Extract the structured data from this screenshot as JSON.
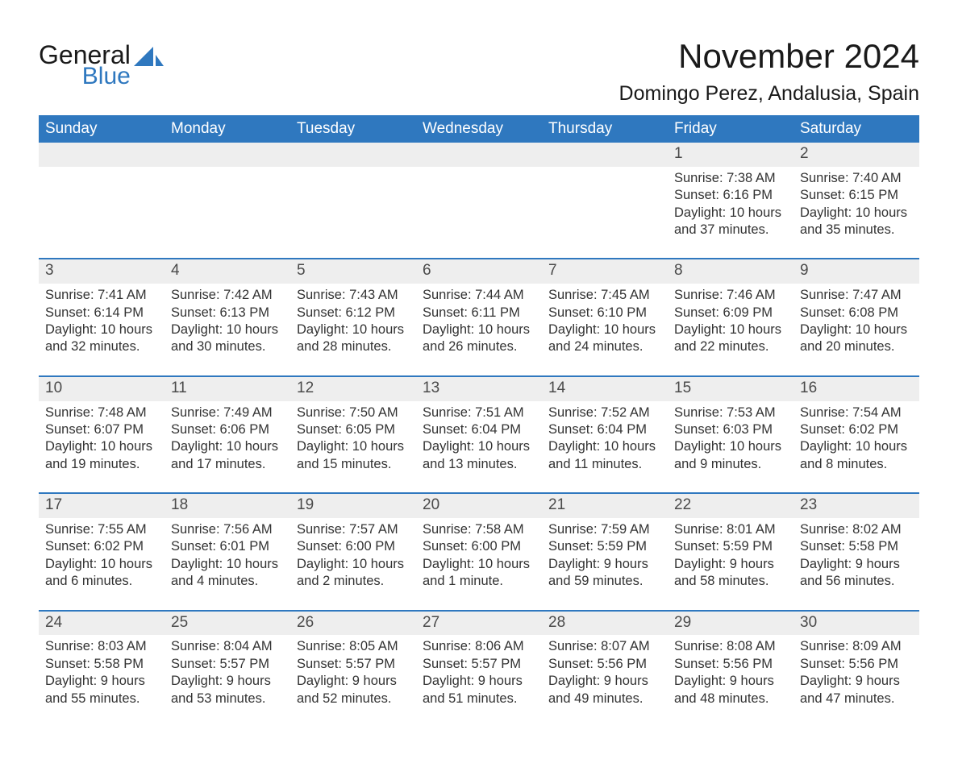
{
  "brand": {
    "word1": "General",
    "word2": "Blue",
    "icon_color": "#2f78bf"
  },
  "title": "November 2024",
  "location": "Domingo Perez, Andalusia, Spain",
  "colors": {
    "header_bg": "#2f78bf",
    "header_text": "#ffffff",
    "row_divider": "#2f78bf",
    "daynum_bg": "#eeeeee",
    "daynum_text": "#4a4a4a",
    "body_text": "#333333",
    "page_bg": "#ffffff"
  },
  "typography": {
    "title_fontsize": 42,
    "location_fontsize": 25,
    "weekday_fontsize": 19,
    "daynum_fontsize": 19,
    "cell_fontsize": 16.5,
    "font_family": "Arial"
  },
  "weekday_labels": [
    "Sunday",
    "Monday",
    "Tuesday",
    "Wednesday",
    "Thursday",
    "Friday",
    "Saturday"
  ],
  "weeks": [
    [
      null,
      null,
      null,
      null,
      null,
      {
        "n": "1",
        "sunrise": "Sunrise: 7:38 AM",
        "sunset": "Sunset: 6:16 PM",
        "daylight": "Daylight: 10 hours and 37 minutes."
      },
      {
        "n": "2",
        "sunrise": "Sunrise: 7:40 AM",
        "sunset": "Sunset: 6:15 PM",
        "daylight": "Daylight: 10 hours and 35 minutes."
      }
    ],
    [
      {
        "n": "3",
        "sunrise": "Sunrise: 7:41 AM",
        "sunset": "Sunset: 6:14 PM",
        "daylight": "Daylight: 10 hours and 32 minutes."
      },
      {
        "n": "4",
        "sunrise": "Sunrise: 7:42 AM",
        "sunset": "Sunset: 6:13 PM",
        "daylight": "Daylight: 10 hours and 30 minutes."
      },
      {
        "n": "5",
        "sunrise": "Sunrise: 7:43 AM",
        "sunset": "Sunset: 6:12 PM",
        "daylight": "Daylight: 10 hours and 28 minutes."
      },
      {
        "n": "6",
        "sunrise": "Sunrise: 7:44 AM",
        "sunset": "Sunset: 6:11 PM",
        "daylight": "Daylight: 10 hours and 26 minutes."
      },
      {
        "n": "7",
        "sunrise": "Sunrise: 7:45 AM",
        "sunset": "Sunset: 6:10 PM",
        "daylight": "Daylight: 10 hours and 24 minutes."
      },
      {
        "n": "8",
        "sunrise": "Sunrise: 7:46 AM",
        "sunset": "Sunset: 6:09 PM",
        "daylight": "Daylight: 10 hours and 22 minutes."
      },
      {
        "n": "9",
        "sunrise": "Sunrise: 7:47 AM",
        "sunset": "Sunset: 6:08 PM",
        "daylight": "Daylight: 10 hours and 20 minutes."
      }
    ],
    [
      {
        "n": "10",
        "sunrise": "Sunrise: 7:48 AM",
        "sunset": "Sunset: 6:07 PM",
        "daylight": "Daylight: 10 hours and 19 minutes."
      },
      {
        "n": "11",
        "sunrise": "Sunrise: 7:49 AM",
        "sunset": "Sunset: 6:06 PM",
        "daylight": "Daylight: 10 hours and 17 minutes."
      },
      {
        "n": "12",
        "sunrise": "Sunrise: 7:50 AM",
        "sunset": "Sunset: 6:05 PM",
        "daylight": "Daylight: 10 hours and 15 minutes."
      },
      {
        "n": "13",
        "sunrise": "Sunrise: 7:51 AM",
        "sunset": "Sunset: 6:04 PM",
        "daylight": "Daylight: 10 hours and 13 minutes."
      },
      {
        "n": "14",
        "sunrise": "Sunrise: 7:52 AM",
        "sunset": "Sunset: 6:04 PM",
        "daylight": "Daylight: 10 hours and 11 minutes."
      },
      {
        "n": "15",
        "sunrise": "Sunrise: 7:53 AM",
        "sunset": "Sunset: 6:03 PM",
        "daylight": "Daylight: 10 hours and 9 minutes."
      },
      {
        "n": "16",
        "sunrise": "Sunrise: 7:54 AM",
        "sunset": "Sunset: 6:02 PM",
        "daylight": "Daylight: 10 hours and 8 minutes."
      }
    ],
    [
      {
        "n": "17",
        "sunrise": "Sunrise: 7:55 AM",
        "sunset": "Sunset: 6:02 PM",
        "daylight": "Daylight: 10 hours and 6 minutes."
      },
      {
        "n": "18",
        "sunrise": "Sunrise: 7:56 AM",
        "sunset": "Sunset: 6:01 PM",
        "daylight": "Daylight: 10 hours and 4 minutes."
      },
      {
        "n": "19",
        "sunrise": "Sunrise: 7:57 AM",
        "sunset": "Sunset: 6:00 PM",
        "daylight": "Daylight: 10 hours and 2 minutes."
      },
      {
        "n": "20",
        "sunrise": "Sunrise: 7:58 AM",
        "sunset": "Sunset: 6:00 PM",
        "daylight": "Daylight: 10 hours and 1 minute."
      },
      {
        "n": "21",
        "sunrise": "Sunrise: 7:59 AM",
        "sunset": "Sunset: 5:59 PM",
        "daylight": "Daylight: 9 hours and 59 minutes."
      },
      {
        "n": "22",
        "sunrise": "Sunrise: 8:01 AM",
        "sunset": "Sunset: 5:59 PM",
        "daylight": "Daylight: 9 hours and 58 minutes."
      },
      {
        "n": "23",
        "sunrise": "Sunrise: 8:02 AM",
        "sunset": "Sunset: 5:58 PM",
        "daylight": "Daylight: 9 hours and 56 minutes."
      }
    ],
    [
      {
        "n": "24",
        "sunrise": "Sunrise: 8:03 AM",
        "sunset": "Sunset: 5:58 PM",
        "daylight": "Daylight: 9 hours and 55 minutes."
      },
      {
        "n": "25",
        "sunrise": "Sunrise: 8:04 AM",
        "sunset": "Sunset: 5:57 PM",
        "daylight": "Daylight: 9 hours and 53 minutes."
      },
      {
        "n": "26",
        "sunrise": "Sunrise: 8:05 AM",
        "sunset": "Sunset: 5:57 PM",
        "daylight": "Daylight: 9 hours and 52 minutes."
      },
      {
        "n": "27",
        "sunrise": "Sunrise: 8:06 AM",
        "sunset": "Sunset: 5:57 PM",
        "daylight": "Daylight: 9 hours and 51 minutes."
      },
      {
        "n": "28",
        "sunrise": "Sunrise: 8:07 AM",
        "sunset": "Sunset: 5:56 PM",
        "daylight": "Daylight: 9 hours and 49 minutes."
      },
      {
        "n": "29",
        "sunrise": "Sunrise: 8:08 AM",
        "sunset": "Sunset: 5:56 PM",
        "daylight": "Daylight: 9 hours and 48 minutes."
      },
      {
        "n": "30",
        "sunrise": "Sunrise: 8:09 AM",
        "sunset": "Sunset: 5:56 PM",
        "daylight": "Daylight: 9 hours and 47 minutes."
      }
    ]
  ]
}
